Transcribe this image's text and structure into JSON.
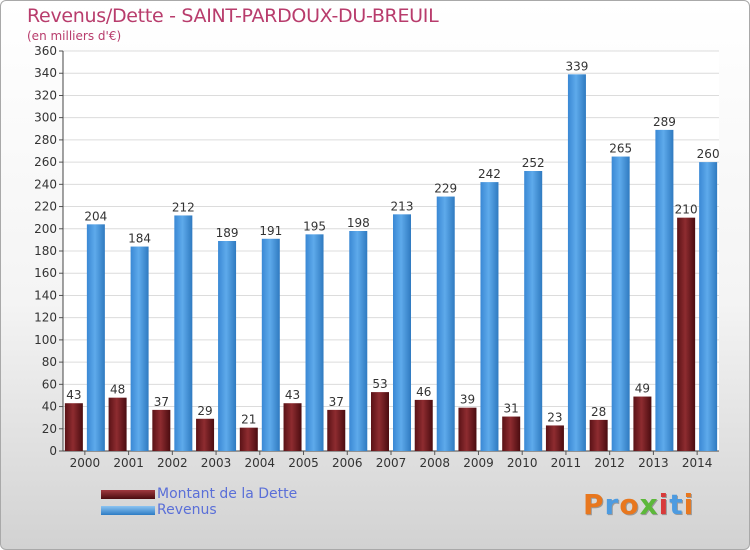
{
  "chart_data": {
    "type": "bar",
    "title": "Revenus/Dette - SAINT-PARDOUX-DU-BREUIL",
    "subtitle": "(en milliers d'€)",
    "categories": [
      "2000",
      "2001",
      "2002",
      "2003",
      "2004",
      "2005",
      "2006",
      "2007",
      "2008",
      "2009",
      "2010",
      "2011",
      "2012",
      "2013",
      "2014"
    ],
    "series": [
      {
        "name": "Montant de la Dette",
        "color": "#7a1f24",
        "values": [
          43,
          48,
          37,
          29,
          21,
          43,
          37,
          53,
          46,
          39,
          31,
          23,
          28,
          49,
          210
        ]
      },
      {
        "name": "Revenus",
        "color": "#4d9be0",
        "values": [
          204,
          184,
          212,
          189,
          191,
          195,
          198,
          213,
          229,
          242,
          252,
          339,
          265,
          289,
          260
        ]
      }
    ],
    "ylim": [
      0,
      360
    ],
    "yticks": [
      0,
      20,
      40,
      60,
      80,
      100,
      120,
      140,
      160,
      180,
      200,
      220,
      240,
      260,
      280,
      300,
      320,
      340,
      360
    ],
    "grid": true,
    "legend": "bottom-left"
  },
  "logo": {
    "text": "Proxiti",
    "colors": [
      "#e8771e",
      "#4d9be0",
      "#e8771e",
      "#5cb83a",
      "#d83a3a",
      "#4d9be0",
      "#e8771e"
    ]
  }
}
